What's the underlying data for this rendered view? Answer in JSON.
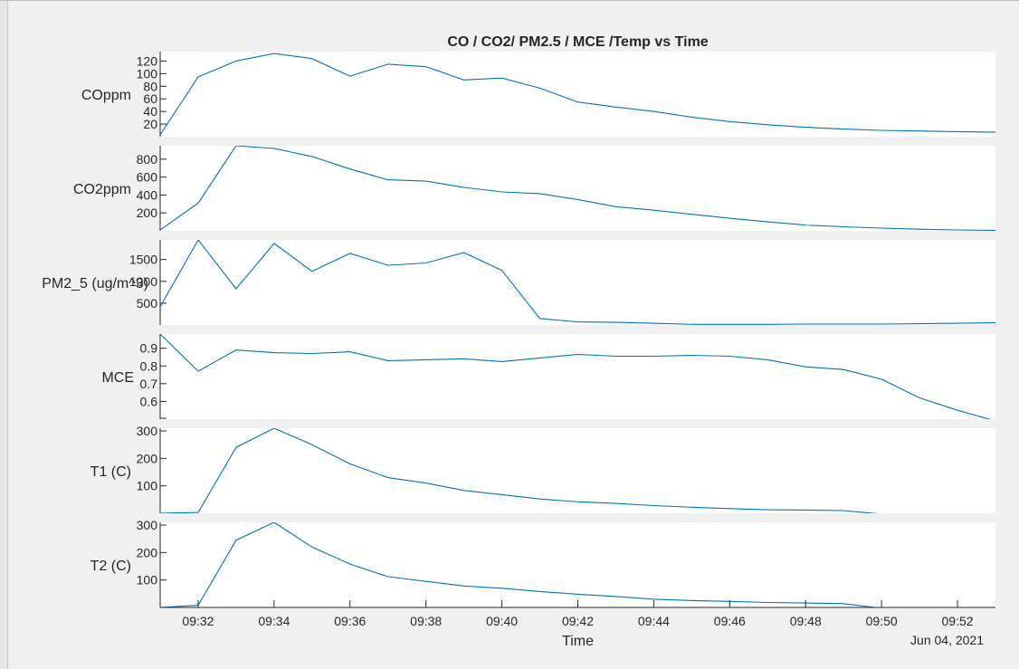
{
  "chart_data": {
    "type": "line",
    "title": "CO / CO2/ PM2.5 / MCE /Temp vs Time",
    "xlabel": "Time",
    "date_label": "Jun 04, 2021",
    "x_ticks": [
      "09:32",
      "09:34",
      "09:36",
      "09:38",
      "09:40",
      "09:42",
      "09:44",
      "09:46",
      "09:48",
      "09:50",
      "09:52"
    ],
    "x": [
      "09:31",
      "09:32",
      "09:33",
      "09:34",
      "09:35",
      "09:36",
      "09:37",
      "09:38",
      "09:39",
      "09:40",
      "09:41",
      "09:42",
      "09:43",
      "09:44",
      "09:45",
      "09:46",
      "09:47",
      "09:48",
      "09:49",
      "09:50",
      "09:51",
      "09:52",
      "09:53"
    ],
    "xlim": [
      "09:31",
      "09:53"
    ],
    "line_color": "#0072bd",
    "subplots": [
      {
        "ylabel": "COppm",
        "ylim": [
          0,
          135
        ],
        "yticks": [
          "20",
          "40",
          "60",
          "80",
          "100",
          "120"
        ],
        "values": [
          3,
          95,
          120,
          132,
          124,
          96,
          115,
          111,
          90,
          93,
          77,
          55,
          47,
          40,
          31,
          24,
          19,
          15,
          12,
          10,
          9,
          8,
          7
        ]
      },
      {
        "ylabel": "CO2ppm",
        "ylim": [
          0,
          950
        ],
        "yticks": [
          "200",
          "400",
          "600",
          "800"
        ],
        "values": [
          10,
          310,
          950,
          920,
          830,
          690,
          570,
          555,
          485,
          435,
          415,
          350,
          270,
          230,
          185,
          140,
          100,
          65,
          45,
          30,
          18,
          10,
          5
        ]
      },
      {
        "ylabel": "PM2_5 (ug/m^3)",
        "ylim": [
          0,
          1950
        ],
        "yticks": [
          "500",
          "1000",
          "1500"
        ],
        "values": [
          420,
          1950,
          830,
          1870,
          1230,
          1640,
          1370,
          1420,
          1660,
          1250,
          150,
          70,
          60,
          40,
          15,
          15,
          15,
          20,
          20,
          20,
          30,
          40,
          50
        ]
      },
      {
        "ylabel": "MCE",
        "ylim": [
          0.5,
          0.98
        ],
        "yticks": [
          "0.6",
          "0.7",
          "0.8",
          "0.9"
        ],
        "values": [
          0.98,
          0.77,
          0.89,
          0.875,
          0.87,
          0.88,
          0.83,
          0.835,
          0.84,
          0.825,
          0.845,
          0.865,
          0.855,
          0.855,
          0.86,
          0.855,
          0.835,
          0.795,
          0.78,
          0.725,
          0.62,
          0.55,
          0.49
        ]
      },
      {
        "ylabel": "T1 (C)",
        "ylim": [
          0,
          310
        ],
        "yticks": [
          "100",
          "200",
          "300"
        ],
        "values": [
          0,
          3,
          240,
          310,
          250,
          180,
          130,
          110,
          83,
          68,
          52,
          42,
          36,
          28,
          22,
          17,
          13,
          12,
          10,
          -3,
          -3,
          -3,
          -3
        ]
      },
      {
        "ylabel": "T2 (C)",
        "ylim": [
          0,
          310
        ],
        "yticks": [
          "100",
          "200",
          "300"
        ],
        "values": [
          0,
          8,
          245,
          310,
          220,
          158,
          112,
          95,
          78,
          70,
          58,
          48,
          40,
          30,
          25,
          22,
          18,
          16,
          14,
          -3,
          -3,
          -3,
          -3
        ]
      }
    ]
  }
}
